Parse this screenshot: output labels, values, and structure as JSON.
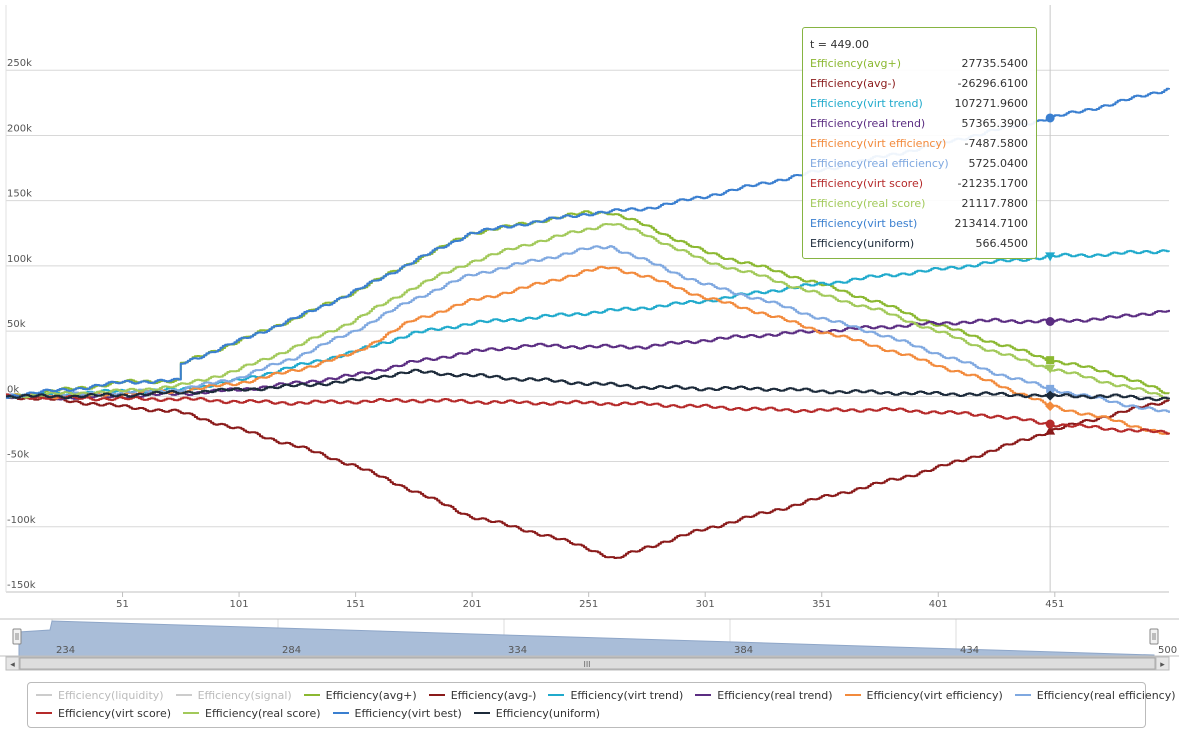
{
  "chart_data": {
    "type": "line",
    "title": "",
    "xlabel": "",
    "ylabel": "",
    "xlim": [
      1,
      500
    ],
    "ylim": [
      -150000,
      300000
    ],
    "y_ticks": [
      -150000,
      -100000,
      -50000,
      0,
      50000,
      100000,
      150000,
      200000,
      250000
    ],
    "y_tick_labels": [
      "-150k",
      "-100k",
      "-50k",
      "0k",
      "50k",
      "100k",
      "150k",
      "200k",
      "250k"
    ],
    "x_ticks": [
      51,
      101,
      151,
      201,
      251,
      301,
      351,
      401,
      451
    ],
    "x_tick_labels": [
      "51",
      "101",
      "151",
      "201",
      "251",
      "301",
      "351",
      "401",
      "451"
    ],
    "grid": true,
    "legend_position": "bottom",
    "crosshair_x": 449,
    "series": [
      {
        "name": "Efficiency(liquidity)",
        "color": "#cccccc",
        "visible": false,
        "x": [],
        "y": []
      },
      {
        "name": "Efficiency(signal)",
        "color": "#cccccc",
        "visible": false,
        "x": [],
        "y": []
      },
      {
        "name": "Efficiency(avg+)",
        "color": "#8bb831",
        "visible": true,
        "marker": "square",
        "x": [
          1,
          20,
          36,
          51,
          75,
          76,
          100,
          125,
          150,
          175,
          200,
          225,
          250,
          260,
          275,
          300,
          325,
          350,
          375,
          400,
          425,
          449,
          475,
          500
        ],
        "y": [
          0,
          4000,
          7000,
          11000,
          12000,
          25000,
          42000,
          60000,
          80000,
          103000,
          125000,
          133000,
          141000,
          141000,
          131000,
          111000,
          99000,
          86000,
          72000,
          55000,
          41000,
          27735.54,
          18000,
          2000
        ]
      },
      {
        "name": "Efficiency(avg-)",
        "color": "#8a1a1a",
        "visible": true,
        "marker": "triangle",
        "x": [
          1,
          25,
          51,
          75,
          100,
          125,
          150,
          175,
          200,
          225,
          250,
          262,
          275,
          300,
          325,
          350,
          375,
          400,
          425,
          449,
          475,
          500
        ],
        "y": [
          0,
          -3000,
          -8000,
          -12000,
          -25000,
          -38000,
          -53000,
          -72000,
          -92000,
          -103000,
          -116000,
          -125000,
          -116000,
          -102000,
          -90000,
          -78000,
          -67000,
          -55000,
          -41000,
          -26296.61,
          -14000,
          -3000
        ]
      },
      {
        "name": "Efficiency(virt trend)",
        "color": "#20aacc",
        "visible": true,
        "marker": "triangle-down",
        "x": [
          1,
          25,
          51,
          75,
          100,
          125,
          150,
          175,
          200,
          225,
          250,
          275,
          300,
          325,
          350,
          375,
          400,
          425,
          449,
          475,
          500
        ],
        "y": [
          0,
          2000,
          4000,
          5000,
          12000,
          23000,
          34000,
          48000,
          56000,
          60000,
          64000,
          68000,
          73000,
          80000,
          86000,
          92000,
          97000,
          103000,
          107271.96,
          109000,
          112000
        ]
      },
      {
        "name": "Efficiency(real trend)",
        "color": "#5b2d82",
        "visible": true,
        "marker": "circle",
        "x": [
          1,
          25,
          51,
          75,
          100,
          125,
          150,
          175,
          200,
          225,
          250,
          275,
          300,
          325,
          350,
          375,
          400,
          425,
          449,
          475,
          500
        ],
        "y": [
          0,
          -1000,
          0,
          2000,
          5000,
          10000,
          16000,
          26000,
          34000,
          39000,
          38000,
          38000,
          43000,
          47000,
          50000,
          53000,
          56000,
          58000,
          57365.39,
          60000,
          66000
        ]
      },
      {
        "name": "Efficiency(virt efficiency)",
        "color": "#f28a3c",
        "visible": true,
        "marker": "diamond",
        "x": [
          1,
          25,
          51,
          75,
          100,
          125,
          150,
          175,
          200,
          225,
          250,
          260,
          275,
          300,
          325,
          350,
          375,
          400,
          425,
          449,
          475,
          500
        ],
        "y": [
          0,
          0,
          2000,
          4000,
          10000,
          20000,
          33000,
          58000,
          73000,
          84000,
          96000,
          99000,
          92000,
          76000,
          64000,
          50000,
          38000,
          24000,
          10000,
          -7487.58,
          -18000,
          -30000
        ]
      },
      {
        "name": "Efficiency(real efficiency)",
        "color": "#7fa8e0",
        "visible": true,
        "marker": "square",
        "x": [
          1,
          25,
          51,
          75,
          100,
          125,
          150,
          175,
          200,
          225,
          250,
          260,
          275,
          300,
          325,
          350,
          375,
          400,
          425,
          449,
          475,
          500
        ],
        "y": [
          0,
          1000,
          3000,
          5000,
          14000,
          30000,
          50000,
          74000,
          93000,
          103000,
          113000,
          115000,
          104000,
          86000,
          74000,
          60000,
          48000,
          33000,
          18000,
          5725.04,
          -4000,
          -13000
        ]
      },
      {
        "name": "Efficiency(virt score)",
        "color": "#b52a2a",
        "visible": true,
        "marker": "circle",
        "x": [
          1,
          25,
          51,
          75,
          100,
          125,
          150,
          175,
          200,
          225,
          250,
          275,
          300,
          325,
          350,
          375,
          400,
          425,
          449,
          475,
          500
        ],
        "y": [
          0,
          -1000,
          -2000,
          -2000,
          -4000,
          -5000,
          -4000,
          -3000,
          -4000,
          -5000,
          -5000,
          -6000,
          -8000,
          -10000,
          -11000,
          -10000,
          -12000,
          -15000,
          -21235.17,
          -25000,
          -28000
        ]
      },
      {
        "name": "Efficiency(real score)",
        "color": "#a2c95a",
        "visible": true,
        "marker": "triangle-down",
        "x": [
          1,
          25,
          51,
          75,
          100,
          125,
          150,
          175,
          200,
          225,
          250,
          260,
          275,
          300,
          325,
          350,
          375,
          400,
          425,
          449,
          475,
          500
        ],
        "y": [
          0,
          2000,
          4000,
          8000,
          20000,
          38000,
          58000,
          83000,
          103000,
          117000,
          128000,
          133000,
          124000,
          104000,
          92000,
          78000,
          66000,
          50000,
          34000,
          21117.78,
          10000,
          -1000
        ]
      },
      {
        "name": "Efficiency(virt best)",
        "color": "#3a7fd0",
        "visible": true,
        "marker": "circle",
        "x": [
          1,
          20,
          36,
          51,
          75,
          76,
          100,
          125,
          150,
          175,
          200,
          225,
          250,
          275,
          300,
          325,
          350,
          375,
          400,
          425,
          449,
          475,
          500
        ],
        "y": [
          0,
          4000,
          7000,
          11000,
          12000,
          25000,
          42000,
          60000,
          80000,
          103000,
          125000,
          133000,
          140000,
          144000,
          153000,
          163000,
          173000,
          183000,
          193000,
          204000,
          213414.71,
          224000,
          236000
        ]
      },
      {
        "name": "Efficiency(uniform)",
        "color": "#1c2a3a",
        "visible": true,
        "marker": "diamond",
        "x": [
          1,
          25,
          51,
          75,
          100,
          125,
          150,
          175,
          200,
          225,
          250,
          275,
          300,
          325,
          350,
          375,
          400,
          425,
          449,
          475,
          500
        ],
        "y": [
          0,
          0,
          1000,
          3000,
          5000,
          8000,
          12000,
          19000,
          16000,
          13000,
          10000,
          7000,
          6000,
          6000,
          4000,
          3000,
          2000,
          1500,
          566.45,
          0,
          -2000
        ]
      }
    ]
  },
  "tooltip": {
    "header": "t = 449.00",
    "rows": [
      {
        "label": "Efficiency(avg+)",
        "value": "27735.5400",
        "color": "#8bb831"
      },
      {
        "label": "Efficiency(avg-)",
        "value": "-26296.6100",
        "color": "#8a1a1a"
      },
      {
        "label": "Efficiency(virt trend)",
        "value": "107271.9600",
        "color": "#20aacc"
      },
      {
        "label": "Efficiency(real trend)",
        "value": "57365.3900",
        "color": "#5b2d82"
      },
      {
        "label": "Efficiency(virt efficiency)",
        "value": "-7487.5800",
        "color": "#f28a3c"
      },
      {
        "label": "Efficiency(real efficiency)",
        "value": "5725.0400",
        "color": "#7fa8e0"
      },
      {
        "label": "Efficiency(virt score)",
        "value": "-21235.1700",
        "color": "#b52a2a"
      },
      {
        "label": "Efficiency(real score)",
        "value": "21117.7800",
        "color": "#a2c95a"
      },
      {
        "label": "Efficiency(virt best)",
        "value": "213414.7100",
        "color": "#3a7fd0"
      },
      {
        "label": "Efficiency(uniform)",
        "value": "566.4500",
        "color": "#1c2a3a"
      }
    ]
  },
  "navigator": {
    "tick_labels": [
      "234",
      "284",
      "334",
      "384",
      "434",
      "500"
    ],
    "fill_color": "#a9bdd8",
    "scroll_thumb_label": "III",
    "scroll_left_label": "◂",
    "scroll_right_label": "▸"
  },
  "legend": {
    "rows": [
      [
        {
          "label": "Efficiency(liquidity)",
          "color": "#cccccc",
          "hidden": true
        },
        {
          "label": "Efficiency(signal)",
          "color": "#cccccc",
          "hidden": true
        },
        {
          "label": "Efficiency(avg+)",
          "color": "#8bb831",
          "hidden": false
        },
        {
          "label": "Efficiency(avg-)",
          "color": "#8a1a1a",
          "hidden": false
        },
        {
          "label": "Efficiency(virt trend)",
          "color": "#20aacc",
          "hidden": false
        },
        {
          "label": "Efficiency(real trend)",
          "color": "#5b2d82",
          "hidden": false
        },
        {
          "label": "Efficiency(virt efficiency)",
          "color": "#f28a3c",
          "hidden": false
        },
        {
          "label": "Efficiency(real efficiency)",
          "color": "#7fa8e0",
          "hidden": false
        }
      ],
      [
        {
          "label": "Efficiency(virt score)",
          "color": "#b52a2a",
          "hidden": false
        },
        {
          "label": "Efficiency(real score)",
          "color": "#a2c95a",
          "hidden": false
        },
        {
          "label": "Efficiency(virt best)",
          "color": "#3a7fd0",
          "hidden": false
        },
        {
          "label": "Efficiency(uniform)",
          "color": "#1c2a3a",
          "hidden": false
        }
      ]
    ]
  }
}
